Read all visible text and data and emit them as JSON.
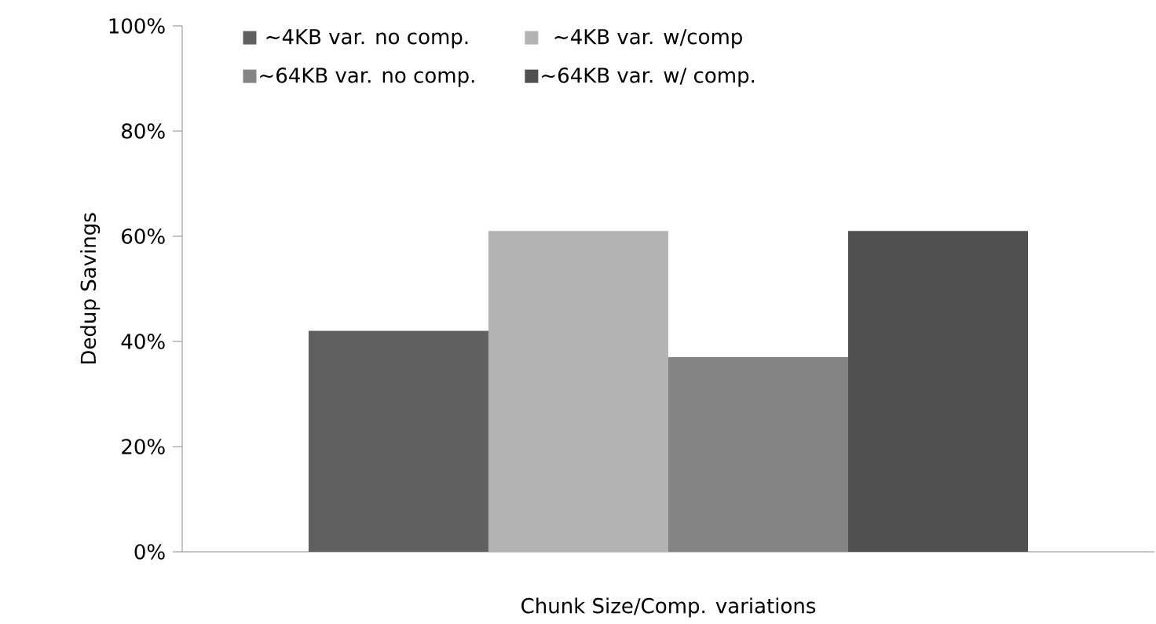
{
  "chart_data": {
    "type": "bar",
    "xlabel": "Chunk Size/Comp. variations",
    "ylabel": "Dedup Savings",
    "categories": [
      null
    ],
    "series": [
      {
        "name": "~4KB var. no comp.",
        "color": "#606060",
        "values": [
          42
        ]
      },
      {
        "name": "~4KB var. w/comp",
        "color": "#b3b3b3",
        "values": [
          61
        ]
      },
      {
        "name": "~64KB var. no comp.",
        "color": "#848484",
        "values": [
          37
        ]
      },
      {
        "name": "~64KB var. w/ comp.",
        "color": "#505050",
        "values": [
          61
        ]
      }
    ],
    "ylim": [
      0,
      100
    ],
    "yticks": [
      {
        "value": 0,
        "label": "0%"
      },
      {
        "value": 20,
        "label": "20%"
      },
      {
        "value": 40,
        "label": "40%"
      },
      {
        "value": 60,
        "label": "60%"
      },
      {
        "value": 80,
        "label": "80%"
      },
      {
        "value": 100,
        "label": "100%"
      }
    ],
    "legend": "top",
    "grid": false
  }
}
